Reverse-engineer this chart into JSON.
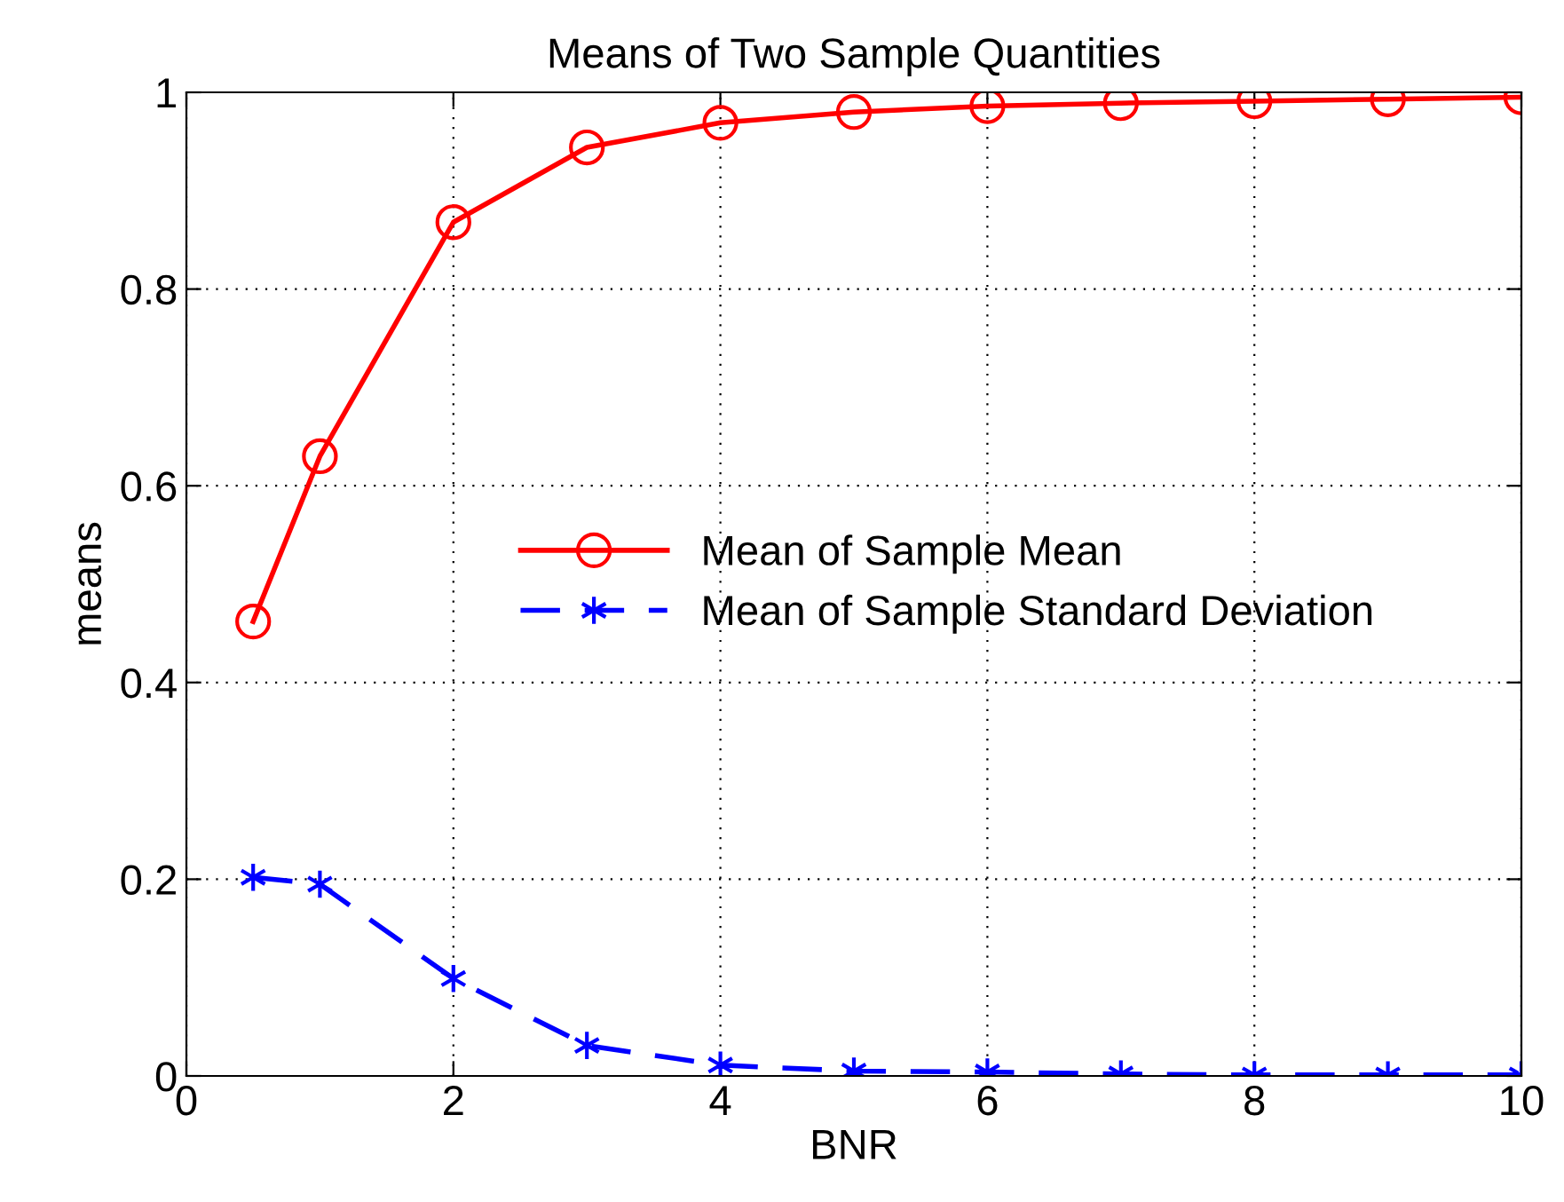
{
  "chart_data": {
    "type": "line",
    "title": "Means of Two Sample Quantities",
    "xlabel": "BNR",
    "ylabel": "means",
    "x": [
      0.5,
      1,
      2,
      3,
      4,
      5,
      6,
      7,
      8,
      9,
      10
    ],
    "series": [
      {
        "name": "Mean of Sample Mean",
        "color": "#ff0000",
        "marker": "circle",
        "line_style": "solid",
        "values": [
          0.462,
          0.63,
          0.868,
          0.944,
          0.969,
          0.98,
          0.986,
          0.989,
          0.991,
          0.993,
          0.995
        ]
      },
      {
        "name": "Mean of Sample Standard Deviation",
        "color": "#0000ff",
        "marker": "cross",
        "line_style": "dashed",
        "values": [
          0.202,
          0.195,
          0.099,
          0.031,
          0.011,
          0.005,
          0.004,
          0.002,
          0.001,
          0.001,
          0.001
        ]
      }
    ],
    "xlim": [
      0,
      10
    ],
    "xticks": [
      0,
      2,
      4,
      6,
      8,
      10
    ],
    "ylim": [
      0,
      1
    ],
    "yticks": [
      0,
      {
        "value": 0.2,
        "label": "0.2"
      },
      {
        "value": 0.4,
        "label": "0.4"
      },
      {
        "value": 0.6,
        "label": "0.6"
      },
      {
        "value": 0.8,
        "label": "0.8"
      },
      1
    ],
    "grid": true,
    "legend": "center"
  }
}
